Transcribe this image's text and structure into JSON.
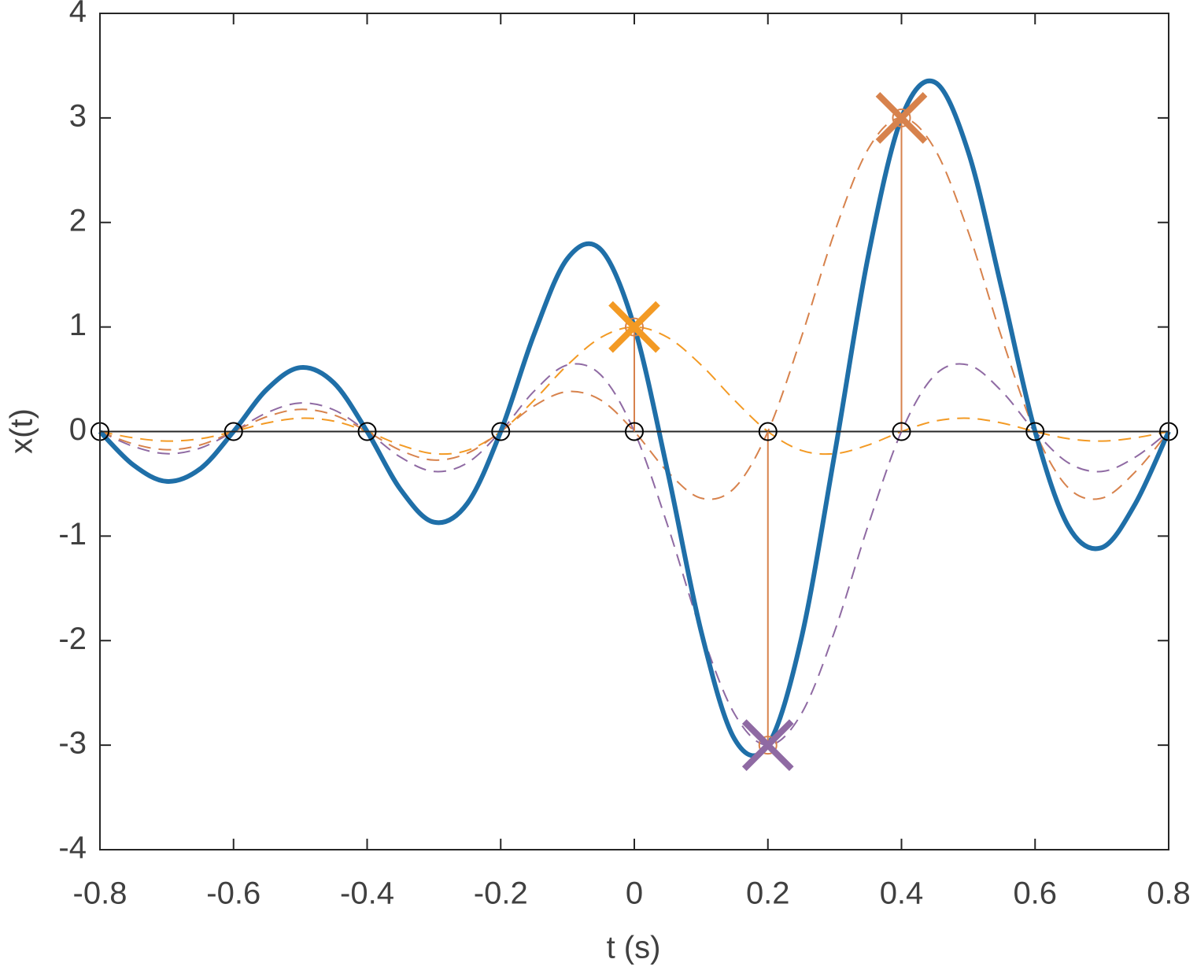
{
  "chart_data": {
    "type": "line",
    "xlabel": "t (s)",
    "ylabel": "x(t)",
    "xlim": [
      -0.8,
      0.8
    ],
    "xticks": [
      -0.8,
      -0.6,
      -0.4,
      -0.2,
      0,
      0.2,
      0.4,
      0.6,
      0.8
    ],
    "ylim": [
      -4,
      4
    ],
    "yticks": [
      -4,
      -3,
      -2,
      -1,
      0,
      1,
      2,
      3,
      4
    ],
    "x": [
      -0.8,
      -0.75,
      -0.7,
      -0.65,
      -0.6,
      -0.55,
      -0.5,
      -0.45,
      -0.4,
      -0.35,
      -0.3,
      -0.25,
      -0.2,
      -0.15,
      -0.1,
      -0.05,
      0,
      0.05,
      0.1,
      0.15,
      0.2,
      0.25,
      0.3,
      0.35,
      0.4,
      0.45,
      0.5,
      0.55,
      0.6,
      0.65,
      0.7,
      0.75,
      0.8
    ],
    "series": [
      {
        "color": "#f39a24",
        "dashed": true,
        "values": [
          0,
          -0.06,
          -0.091,
          -0.069,
          0,
          0.082,
          0.127,
          0.1,
          0,
          -0.129,
          -0.212,
          -0.18,
          0,
          0.3,
          0.637,
          0.9,
          1,
          0.9,
          0.637,
          0.3,
          0,
          -0.18,
          -0.212,
          -0.129,
          0,
          0.1,
          0.127,
          0.082,
          0,
          -0.069,
          -0.091,
          -0.06,
          0
        ]
      },
      {
        "color": "#8f6aa3",
        "dashed": true,
        "values": [
          0,
          -0.142,
          -0.212,
          -0.159,
          0,
          0.18,
          0.273,
          0.208,
          0,
          -0.245,
          -0.382,
          -0.3,
          0,
          0.386,
          0.637,
          0.54,
          0,
          -0.9,
          -1.91,
          -2.701,
          -3,
          -2.701,
          -1.91,
          -0.9,
          0,
          0.54,
          0.637,
          0.386,
          0,
          -0.3,
          -0.382,
          -0.245,
          0
        ]
      },
      {
        "color": "#d7824c",
        "dashed": true,
        "values": [
          0,
          -0.118,
          -0.174,
          -0.129,
          0,
          0.142,
          0.212,
          0.159,
          0,
          -0.18,
          -0.273,
          -0.208,
          0,
          0.245,
          0.382,
          0.3,
          0,
          -0.386,
          -0.637,
          -0.54,
          0,
          0.9,
          1.91,
          2.701,
          3,
          2.701,
          1.91,
          0.9,
          0,
          -0.54,
          -0.637,
          -0.386,
          0
        ]
      },
      {
        "color": "#1f6fa8",
        "dashed": false,
        "values": [
          0,
          -0.32,
          -0.477,
          -0.357,
          0,
          0.404,
          0.612,
          0.467,
          0,
          -0.554,
          -0.867,
          -0.688,
          0,
          0.931,
          1.656,
          1.74,
          1,
          -0.386,
          -1.91,
          -2.941,
          -3,
          -1.981,
          -0.212,
          1.672,
          3,
          3.341,
          2.674,
          1.368,
          0,
          -0.909,
          -1.11,
          -0.691,
          0
        ]
      }
    ],
    "samples": {
      "x": [
        -0.8,
        -0.6,
        -0.4,
        -0.2,
        0,
        0.2,
        0.4,
        0.6,
        0.8
      ],
      "values": [
        0,
        0,
        0,
        0,
        1,
        -3,
        3,
        0,
        0
      ],
      "color": "#000000",
      "stem_color": "#d7824c"
    }
  }
}
